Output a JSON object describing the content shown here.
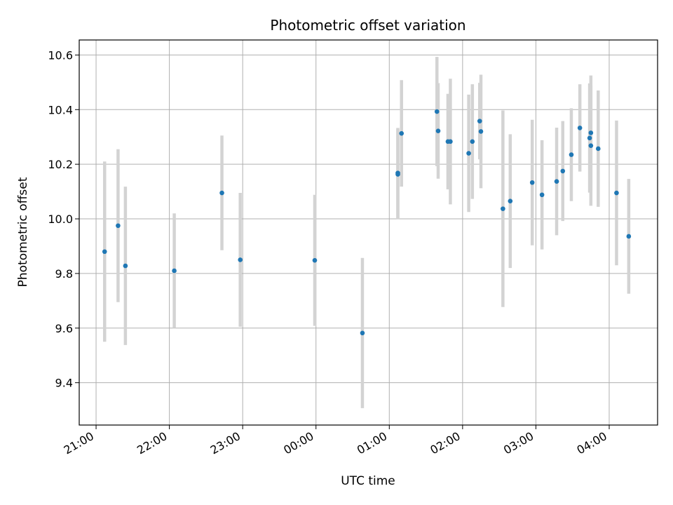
{
  "chart_data": {
    "type": "scatter",
    "title": "Photometric offset variation",
    "xlabel": "UTC time",
    "ylabel": "Photometric offset",
    "grid": true,
    "x_ticks": [
      "21:00",
      "22:00",
      "23:00",
      "00:00",
      "01:00",
      "02:00",
      "03:00",
      "04:00"
    ],
    "x_tick_hours": [
      0,
      1,
      2,
      3,
      4,
      5,
      6,
      7
    ],
    "y_ticks": [
      "9.4",
      "9.6",
      "9.8",
      "10.0",
      "10.2",
      "10.4",
      "10.6"
    ],
    "y_tick_values": [
      9.4,
      9.6,
      9.8,
      10.0,
      10.2,
      10.4,
      10.6
    ],
    "xlim_hours": [
      -0.23,
      7.66
    ],
    "ylim": [
      9.245,
      10.655
    ],
    "point_color": "#1f77b4",
    "errorbar_color": "#d3d3d3",
    "series": [
      {
        "points": [
          {
            "t": "21:07",
            "y": 9.88,
            "err": 0.33
          },
          {
            "t": "21:18",
            "y": 9.975,
            "err": 0.28
          },
          {
            "t": "21:24",
            "y": 9.828,
            "err": 0.29
          },
          {
            "t": "22:04",
            "y": 9.81,
            "err": 0.21
          },
          {
            "t": "22:43",
            "y": 10.095,
            "err": 0.21
          },
          {
            "t": "22:58",
            "y": 9.85,
            "err": 0.245
          },
          {
            "t": "23:59",
            "y": 9.848,
            "err": 0.24
          },
          {
            "t": "00:38",
            "y": 9.582,
            "err": 0.275
          },
          {
            "t": "01:07",
            "y": 10.168,
            "err": 0.165
          },
          {
            "t": "01:07",
            "y": 10.163,
            "err": 0.165
          },
          {
            "t": "01:10",
            "y": 10.313,
            "err": 0.195
          },
          {
            "t": "01:39",
            "y": 10.393,
            "err": 0.2
          },
          {
            "t": "01:40",
            "y": 10.322,
            "err": 0.175
          },
          {
            "t": "01:48",
            "y": 10.283,
            "err": 0.175
          },
          {
            "t": "01:50",
            "y": 10.283,
            "err": 0.23
          },
          {
            "t": "02:05",
            "y": 10.24,
            "err": 0.215
          },
          {
            "t": "02:08",
            "y": 10.283,
            "err": 0.21
          },
          {
            "t": "02:14",
            "y": 10.358,
            "err": 0.14
          },
          {
            "t": "02:15",
            "y": 10.32,
            "err": 0.208
          },
          {
            "t": "02:33",
            "y": 10.037,
            "err": 0.36
          },
          {
            "t": "02:39",
            "y": 10.065,
            "err": 0.245
          },
          {
            "t": "02:57",
            "y": 10.133,
            "err": 0.23
          },
          {
            "t": "03:05",
            "y": 10.088,
            "err": 0.2
          },
          {
            "t": "03:17",
            "y": 10.137,
            "err": 0.197
          },
          {
            "t": "03:22",
            "y": 10.175,
            "err": 0.183
          },
          {
            "t": "03:29",
            "y": 10.235,
            "err": 0.17
          },
          {
            "t": "03:36",
            "y": 10.333,
            "err": 0.16
          },
          {
            "t": "03:44",
            "y": 10.296,
            "err": 0.2
          },
          {
            "t": "03:45",
            "y": 10.315,
            "err": 0.21
          },
          {
            "t": "03:45",
            "y": 10.268,
            "err": 0.22
          },
          {
            "t": "03:51",
            "y": 10.257,
            "err": 0.213
          },
          {
            "t": "04:06",
            "y": 10.095,
            "err": 0.265
          },
          {
            "t": "04:16",
            "y": 9.936,
            "err": 0.21
          }
        ]
      }
    ]
  }
}
